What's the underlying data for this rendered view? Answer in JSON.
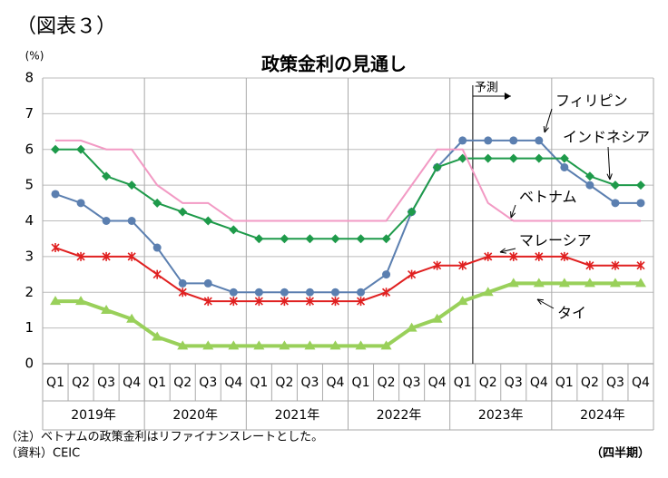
{
  "figure_label": "（図表３）",
  "chart_data": {
    "type": "line",
    "title": "政策金利の見通し",
    "y_unit": "(%)",
    "categories": [
      "Q1",
      "Q2",
      "Q3",
      "Q4",
      "Q1",
      "Q2",
      "Q3",
      "Q4",
      "Q1",
      "Q2",
      "Q3",
      "Q4",
      "Q1",
      "Q2",
      "Q3",
      "Q4",
      "Q1",
      "Q2",
      "Q3",
      "Q4",
      "Q1",
      "Q2",
      "Q3",
      "Q4"
    ],
    "years": [
      "2019年",
      "2020年",
      "2021年",
      "2022年",
      "2023年",
      "2024年"
    ],
    "ylim": [
      0,
      8
    ],
    "yticks": [
      0,
      1,
      2,
      3,
      4,
      5,
      6,
      7,
      8
    ],
    "grid": true,
    "forecast_label": "予測",
    "series": [
      {
        "name": "フィリピン",
        "color": "#5b7fb0",
        "marker": "circle",
        "values": [
          4.75,
          4.5,
          4.0,
          4.0,
          3.25,
          2.25,
          2.25,
          2.0,
          2.0,
          2.0,
          2.0,
          2.0,
          2.0,
          2.5,
          4.25,
          5.5,
          6.25,
          6.25,
          6.25,
          6.25,
          5.5,
          5.0,
          4.5,
          4.5
        ]
      },
      {
        "name": "インドネシア",
        "color": "#1e9a4a",
        "marker": "diamond",
        "values": [
          6.0,
          6.0,
          5.25,
          5.0,
          4.5,
          4.25,
          4.0,
          3.75,
          3.5,
          3.5,
          3.5,
          3.5,
          3.5,
          3.5,
          4.25,
          5.5,
          5.75,
          5.75,
          5.75,
          5.75,
          5.75,
          5.25,
          5.0,
          5.0
        ]
      },
      {
        "name": "ベトナム",
        "color": "#f29ac4",
        "marker": "none",
        "values": [
          6.25,
          6.25,
          6.0,
          6.0,
          5.0,
          4.5,
          4.5,
          4.0,
          4.0,
          4.0,
          4.0,
          4.0,
          4.0,
          4.0,
          5.0,
          6.0,
          6.0,
          4.5,
          4.0,
          4.0,
          4.0,
          4.0,
          4.0,
          4.0
        ]
      },
      {
        "name": "マレーシア",
        "color": "#e02020",
        "marker": "star",
        "values": [
          3.25,
          3.0,
          3.0,
          3.0,
          2.5,
          2.0,
          1.75,
          1.75,
          1.75,
          1.75,
          1.75,
          1.75,
          1.75,
          2.0,
          2.5,
          2.75,
          2.75,
          3.0,
          3.0,
          3.0,
          3.0,
          2.75,
          2.75,
          2.75
        ]
      },
      {
        "name": "タイ",
        "color": "#99d05a",
        "marker": "triangle",
        "values": [
          1.75,
          1.75,
          1.5,
          1.25,
          0.75,
          0.5,
          0.5,
          0.5,
          0.5,
          0.5,
          0.5,
          0.5,
          0.5,
          0.5,
          1.0,
          1.25,
          1.75,
          2.0,
          2.25,
          2.25,
          2.25,
          2.25,
          2.25,
          2.25
        ]
      }
    ]
  },
  "notes": [
    "（注）ベトナムの政策金利はリファイナンスレートとした。",
    "（資料）CEIC"
  ],
  "period_label": "（四半期）"
}
